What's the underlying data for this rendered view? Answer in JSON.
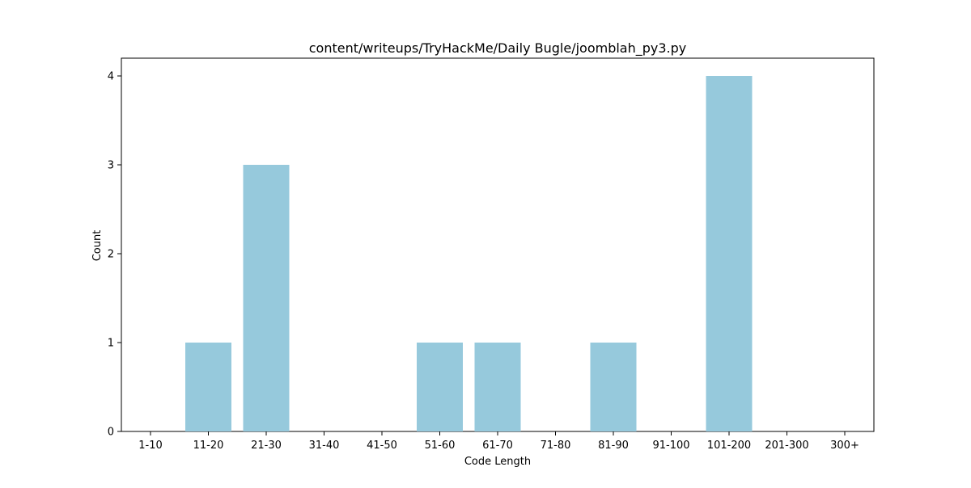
{
  "chart_data": {
    "type": "bar",
    "title": "content/writeups/TryHackMe/Daily Bugle/joomblah_py3.py",
    "xlabel": "Code Length",
    "ylabel": "Count",
    "categories": [
      "1-10",
      "11-20",
      "21-30",
      "31-40",
      "41-50",
      "51-60",
      "61-70",
      "71-80",
      "81-90",
      "91-100",
      "101-200",
      "201-300",
      "300+"
    ],
    "values": [
      0,
      1,
      3,
      0,
      0,
      1,
      1,
      0,
      1,
      0,
      4,
      0,
      0
    ],
    "ylim": [
      0,
      4.2
    ],
    "yticks": [
      0,
      1,
      2,
      3,
      4
    ],
    "bar_color": "#96c9dc",
    "grid": false,
    "legend": "none"
  }
}
